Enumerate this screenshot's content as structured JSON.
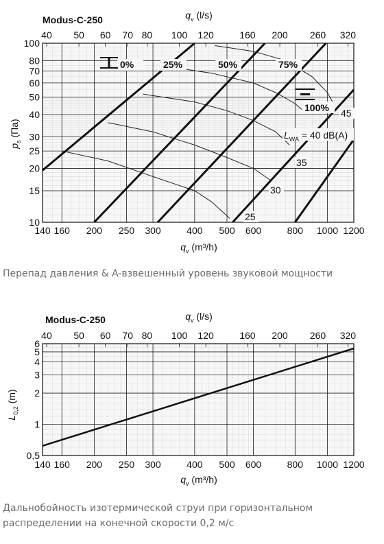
{
  "chart_data": [
    {
      "type": "line",
      "title": "Modus-C-250",
      "x_top_label": "q_v (l/s)",
      "x_top_ticks": [
        40,
        50,
        60,
        70,
        80,
        100,
        120,
        160,
        200,
        260,
        320
      ],
      "xlabel": "q_v (m³/h)",
      "x_ticks": [
        140,
        160,
        200,
        250,
        300,
        400,
        500,
        600,
        800,
        1000,
        1200
      ],
      "ylabel": "p_s (Па)",
      "y_ticks": [
        10,
        15,
        20,
        25,
        30,
        40,
        50,
        60,
        70,
        80,
        100
      ],
      "xlim": [
        140,
        1200
      ],
      "ylim": [
        10,
        100
      ],
      "x_scale": "log",
      "y_scale": "log",
      "grid": true,
      "damper_lines": [
        {
          "label": "0%",
          "points": [
            [
              140,
              19.5
            ],
            [
              400,
              100
            ]
          ]
        },
        {
          "label": "25%",
          "points": [
            [
              200,
              10
            ],
            [
              650,
              100
            ]
          ]
        },
        {
          "label": "50%",
          "points": [
            [
              310,
              10
            ],
            [
              990,
              100
            ]
          ]
        },
        {
          "label": "75%",
          "points": [
            [
              520,
              10
            ],
            [
              1200,
              55
            ]
          ]
        },
        {
          "label": "100%",
          "points": [
            [
              1200,
              45
            ],
            [
              1200,
              45
            ]
          ]
        }
      ],
      "sound_curves": [
        {
          "label": "25",
          "points": [
            [
              160,
              25
            ],
            [
              220,
              22
            ],
            [
              300,
              18
            ],
            [
              400,
              15
            ],
            [
              450,
              13
            ],
            [
              510,
              10.5
            ]
          ]
        },
        {
          "label": "30",
          "points": [
            [
              220,
              36
            ],
            [
              300,
              32
            ],
            [
              400,
              27
            ],
            [
              500,
              23
            ],
            [
              600,
              20
            ],
            [
              680,
              17
            ]
          ]
        },
        {
          "label": "35",
          "points": [
            [
              280,
              52
            ],
            [
              400,
              47
            ],
            [
              500,
              42
            ],
            [
              600,
              37
            ],
            [
              700,
              32
            ],
            [
              770,
              27
            ]
          ]
        },
        {
          "label": "40",
          "points": [
            [
              350,
              73
            ],
            [
              450,
              68
            ],
            [
              600,
              60
            ],
            [
              700,
              53
            ],
            [
              800,
              46
            ],
            [
              860,
              41
            ]
          ]
        },
        {
          "label": "45",
          "points": [
            [
              460,
              97
            ],
            [
              600,
              90
            ],
            [
              750,
              80
            ],
            [
              900,
              65
            ],
            [
              1000,
              53
            ],
            [
              1050,
              45
            ]
          ]
        }
      ],
      "sound_label_prefix": "L_WA = ",
      "sound_label_suffix": " dB(A)",
      "damper_icon_labels": [
        "0%",
        "100%"
      ]
    },
    {
      "type": "line",
      "title": "Modus-C-250",
      "x_top_label": "q_v (l/s)",
      "x_top_ticks": [
        40,
        50,
        60,
        70,
        80,
        100,
        120,
        160,
        200,
        260,
        320
      ],
      "xlabel": "q_v (m³/h)",
      "x_ticks": [
        140,
        160,
        200,
        250,
        300,
        400,
        500,
        600,
        800,
        1000,
        1200
      ],
      "ylabel": "L_0,2 (m)",
      "y_ticks": [
        "0,5",
        "1",
        "2",
        "3",
        "4",
        "5",
        "6"
      ],
      "y_tick_values": [
        0.5,
        1,
        2,
        3,
        4,
        5,
        6
      ],
      "xlim": [
        140,
        1200
      ],
      "ylim": [
        0.5,
        6
      ],
      "x_scale": "log",
      "y_scale": "log",
      "grid": true,
      "series": [
        {
          "points": [
            [
              140,
              0.62
            ],
            [
              1200,
              5.4
            ]
          ]
        }
      ]
    }
  ],
  "captions": {
    "chart1": "Перепад давления & A-взвешенный уровень звуковой мощности",
    "chart2_line1": "Дальнобойность изотермической струи при горизонтальном",
    "chart2_line2": "распределении на конечной скорости 0,2 м/с"
  }
}
